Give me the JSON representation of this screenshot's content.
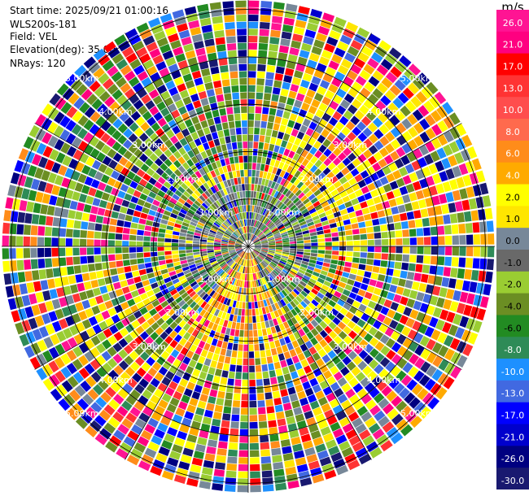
{
  "header": {
    "start_time": "Start time: 2025/09/21 01:00:16",
    "instrument": "WLS200s-181",
    "field": "Field: VEL",
    "elevation": "Elevation(deg): 35.00",
    "nrays": "NRays: 120"
  },
  "ppi": {
    "n_rays": 120,
    "range_rings_km": [
      1,
      2,
      3,
      4,
      5
    ],
    "range_labels": [
      "1.00km",
      "2.00km",
      "3.00km",
      "4.00km",
      "5.00km"
    ]
  },
  "colorbar": {
    "unit": "m/s",
    "bins": [
      {
        "label": "26.0",
        "color": "#ff1493"
      },
      {
        "label": "21.0",
        "color": "#ff0080"
      },
      {
        "label": "17.0",
        "color": "#ff0000"
      },
      {
        "label": "13.0",
        "color": "#ff3333"
      },
      {
        "label": "10.0",
        "color": "#ff4d4d"
      },
      {
        "label": "8.0",
        "color": "#ff6a4d"
      },
      {
        "label": "6.0",
        "color": "#ff8c1a"
      },
      {
        "label": "4.0",
        "color": "#ffaa00"
      },
      {
        "label": "2.0",
        "color": "#ffff00"
      },
      {
        "label": "1.0",
        "color": "#ffe600"
      },
      {
        "label": "0.0",
        "color": "#778899"
      },
      {
        "label": "-1.0",
        "color": "#696969"
      },
      {
        "label": "-2.0",
        "color": "#9acd32"
      },
      {
        "label": "-4.0",
        "color": "#6b8e23"
      },
      {
        "label": "-6.0",
        "color": "#228b22"
      },
      {
        "label": "-8.0",
        "color": "#2e8b57"
      },
      {
        "label": "-10.0",
        "color": "#1e90ff"
      },
      {
        "label": "-13.0",
        "color": "#4169e1"
      },
      {
        "label": "-17.0",
        "color": "#0000ff"
      },
      {
        "label": "-21.0",
        "color": "#0000cd"
      },
      {
        "label": "-26.0",
        "color": "#000080"
      },
      {
        "label": "-30.0",
        "color": "#191970"
      }
    ]
  }
}
